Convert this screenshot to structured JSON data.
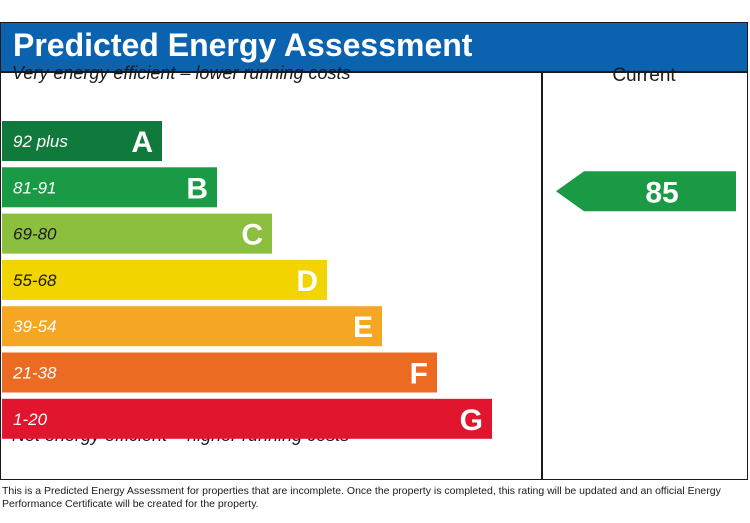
{
  "title": "Predicted Energy Assessment",
  "top_caption": "Very energy efficient – lower running costs",
  "bottom_caption": "Not energy efficient – higher running costs",
  "footnote": "This is a Predicted Energy Assessment for properties that are incomplete. Once the property is completed, this rating will be updated and an official Energy Performance Certificate will be created for the property.",
  "colors": {
    "header": "#0b63b0",
    "current_arrow": "#1a9a45"
  },
  "chart_data": {
    "type": "bar",
    "title": "Predicted Energy Assessment",
    "bands": [
      {
        "letter": "A",
        "range": "92 plus",
        "color": "#0f7a3c"
      },
      {
        "letter": "B",
        "range": "81-91",
        "color": "#1a9a45"
      },
      {
        "letter": "C",
        "range": "69-80",
        "color": "#8dbf3f"
      },
      {
        "letter": "D",
        "range": "55-68",
        "color": "#f2d500"
      },
      {
        "letter": "E",
        "range": "39-54",
        "color": "#f5a623"
      },
      {
        "letter": "F",
        "range": "21-38",
        "color": "#ec6b22"
      },
      {
        "letter": "G",
        "range": "1-20",
        "color": "#e1152e"
      }
    ],
    "column_header": "Current",
    "current": {
      "value": 85,
      "band": "B"
    }
  }
}
